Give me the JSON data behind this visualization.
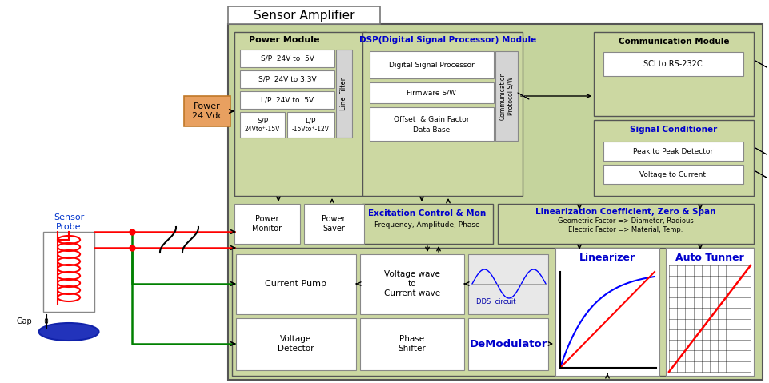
{
  "title": "Sensor Amplifier",
  "green_outer": "#c8d4a0",
  "green_inner": "#ccd8a4",
  "white": "#ffffff",
  "gray_light": "#d0d0d0",
  "blue_title": "#0000cc",
  "orange_power": "#e8a868",
  "black": "#000000",
  "power_module_label": "Power Module",
  "dsp_module_label": "DSP(Digital Signal Processor) Module",
  "comm_module_label": "Communication Module",
  "sci_label": "SCI to RS-232C",
  "signal_cond_label": "Signal Conditioner",
  "peak_detect": "Peak to Peak Detector",
  "volt_current": "Voltage to Current",
  "comm_protocol": "Communication\nProtocol S/W",
  "line_filter": "Line Filter",
  "dsp_item1": "Digital Signal Processor",
  "dsp_item2": "Firmware S/W",
  "dsp_item3a": "Offset  & Gain Factor",
  "dsp_item3b": "Data Base",
  "pm_item1": "S/P  24V to  5V",
  "pm_item2": "S/P  24V to 3.3V",
  "pm_item3": "L/P  24V to  5V",
  "pm_sp": "S/P",
  "pm_sp_sub": "24Vto⁺-15V",
  "pm_lp": "L/P",
  "pm_lp_sub": "-15Vto⁺-12V",
  "power_label": "Power\n24 Vdc",
  "power_monitor": "Power\nMonitor",
  "power_saver": "Power\nSaver",
  "excitation_label": "Excitation Control & Mon",
  "excitation_sub": "Frequency, Amplitude, Phase",
  "lin_coeff_label": "Linearization Coefficient, Zero & Span",
  "lin_coeff_sub1": "Geometric Factor => Diameter, Radious",
  "lin_coeff_sub2": "Electric Factor => Material, Temp.",
  "current_pump": "Current Pump",
  "voltage_wave": "Voltage wave\nto\nCurrent wave",
  "dds_label": "DDS  circuit",
  "linearizer": "Linearizer",
  "auto_tunner": "Auto Tunner",
  "volt_detector": "Voltage\nDetector",
  "phase_shifter": "Phase\nShifter",
  "demodulator": "DeModulator",
  "sensor_probe": "Sensor\nProbe",
  "gap_label": "Gap"
}
